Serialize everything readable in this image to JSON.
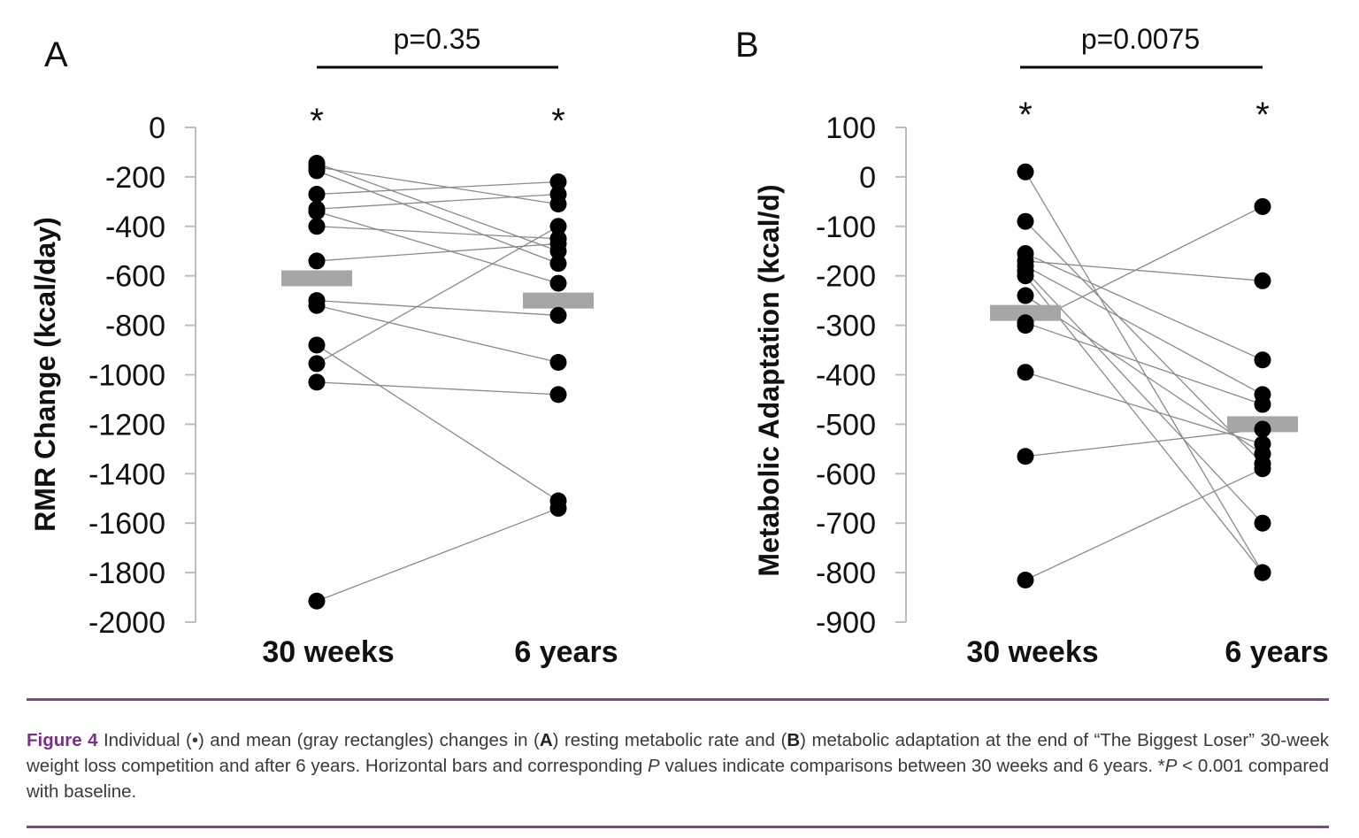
{
  "chart_data": [
    {
      "type": "scatter",
      "panel_label": "A",
      "ylabel": "RMR Change (kcal/day)",
      "categories": [
        "30 weeks",
        "6 years"
      ],
      "ylim": [
        -2000,
        0
      ],
      "yticks": [
        0,
        -200,
        -400,
        -600,
        -800,
        -1000,
        -1200,
        -1400,
        -1600,
        -1800,
        -2000
      ],
      "comparison_label": "p=0.35",
      "significance_marks": [
        "*",
        "*"
      ],
      "means": [
        -610,
        -700
      ],
      "pairs": [
        [
          -145,
          -500
        ],
        [
          -160,
          -310
        ],
        [
          -175,
          -550
        ],
        [
          -270,
          -220
        ],
        [
          -330,
          -270
        ],
        [
          -340,
          -630
        ],
        [
          -400,
          -450
        ],
        [
          -540,
          -470
        ],
        [
          -700,
          -760
        ],
        [
          -720,
          -950
        ],
        [
          -880,
          -1510
        ],
        [
          -955,
          -400
        ],
        [
          -1030,
          -1080
        ],
        [
          -1915,
          -1540
        ]
      ]
    },
    {
      "type": "scatter",
      "panel_label": "B",
      "ylabel": "Metabolic Adaptation (kcal/d)",
      "categories": [
        "30 weeks",
        "6 years"
      ],
      "ylim": [
        -900,
        100
      ],
      "yticks": [
        100,
        0,
        -100,
        -200,
        -300,
        -400,
        -500,
        -600,
        -700,
        -800,
        -900
      ],
      "comparison_label": "p=0.0075",
      "significance_marks": [
        "*",
        "*"
      ],
      "means": [
        -275,
        -500
      ],
      "pairs": [
        [
          10,
          -800
        ],
        [
          -90,
          -580
        ],
        [
          -155,
          -370
        ],
        [
          -170,
          -210
        ],
        [
          -180,
          -440
        ],
        [
          -190,
          -700
        ],
        [
          -200,
          -800
        ],
        [
          -240,
          -560
        ],
        [
          -295,
          -460
        ],
        [
          -300,
          -60
        ],
        [
          -395,
          -540
        ],
        [
          -565,
          -510
        ],
        [
          -815,
          -590
        ]
      ]
    }
  ],
  "caption": {
    "label": "Figure 4",
    "parts": [
      " Individual (•) and mean (gray rectangles) changes in (",
      "A",
      ") resting metabolic rate and  (",
      "B",
      ") metabolic adaptation at the end of “The Biggest Loser” 30-week weight loss competition and after 6 years. Horizontal bars and corresponding ",
      "P",
      " values indicate comparisons between 30 weeks and 6 years. *",
      "P",
      " < 0.001 compared with baseline."
    ]
  },
  "colors": {
    "points": "#000000",
    "lines": "#8a8a8a",
    "mean_bar": "#a6a6a6",
    "rule": "#7b4a86",
    "figure_label": "#7b2f87"
  }
}
